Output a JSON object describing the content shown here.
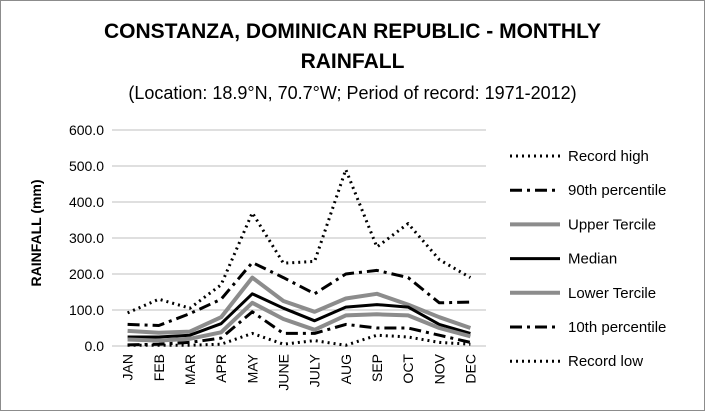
{
  "chart_data": {
    "type": "line",
    "title_line1": "CONSTANZA, DOMINICAN REPUBLIC - MONTHLY",
    "title_line2": "RAINFALL",
    "subtitle": "(Location: 18.9°N, 70.7°W; Period of record: 1971-2012)",
    "ylabel": "RAINFALL (mm)",
    "xlabel": "",
    "ylim": [
      0,
      600
    ],
    "yticks": [
      0,
      100,
      200,
      300,
      400,
      500,
      600
    ],
    "ytick_labels": [
      "0.0",
      "100.0",
      "200.0",
      "300.0",
      "400.0",
      "500.0",
      "600.0"
    ],
    "grid": "horizontal",
    "legend_position": "right",
    "categories": [
      "JAN",
      "FEB",
      "MAR",
      "APR",
      "MAY",
      "JUNE",
      "JULY",
      "AUG",
      "SEP",
      "OCT",
      "NOV",
      "DEC"
    ],
    "series": [
      {
        "name": "Record high",
        "color": "#000000",
        "style": "dotted",
        "values": [
          92,
          130,
          105,
          170,
          370,
          230,
          235,
          490,
          275,
          340,
          240,
          190
        ]
      },
      {
        "name": "90th percentile",
        "color": "#000000",
        "style": "dashdot",
        "values": [
          60,
          57,
          90,
          130,
          232,
          190,
          145,
          200,
          210,
          190,
          120,
          122
        ]
      },
      {
        "name": "Upper Tercile",
        "color": "#8c8c8c",
        "style": "solid",
        "values": [
          42,
          37,
          40,
          80,
          190,
          125,
          95,
          132,
          145,
          115,
          80,
          50
        ]
      },
      {
        "name": "Median",
        "color": "#000000",
        "style": "solid",
        "values": [
          25,
          25,
          30,
          62,
          145,
          105,
          70,
          108,
          115,
          108,
          60,
          35
        ]
      },
      {
        "name": "Lower Tercile",
        "color": "#8c8c8c",
        "style": "solid",
        "values": [
          18,
          15,
          20,
          38,
          120,
          75,
          45,
          85,
          88,
          85,
          50,
          27
        ]
      },
      {
        "name": "10th percentile",
        "color": "#000000",
        "style": "dashdot",
        "values": [
          3,
          5,
          10,
          22,
          95,
          35,
          35,
          60,
          50,
          50,
          30,
          10
        ]
      },
      {
        "name": "Record low",
        "color": "#000000",
        "style": "dotted",
        "values": [
          2,
          2,
          2,
          5,
          35,
          5,
          15,
          2,
          30,
          25,
          10,
          5
        ]
      }
    ]
  }
}
